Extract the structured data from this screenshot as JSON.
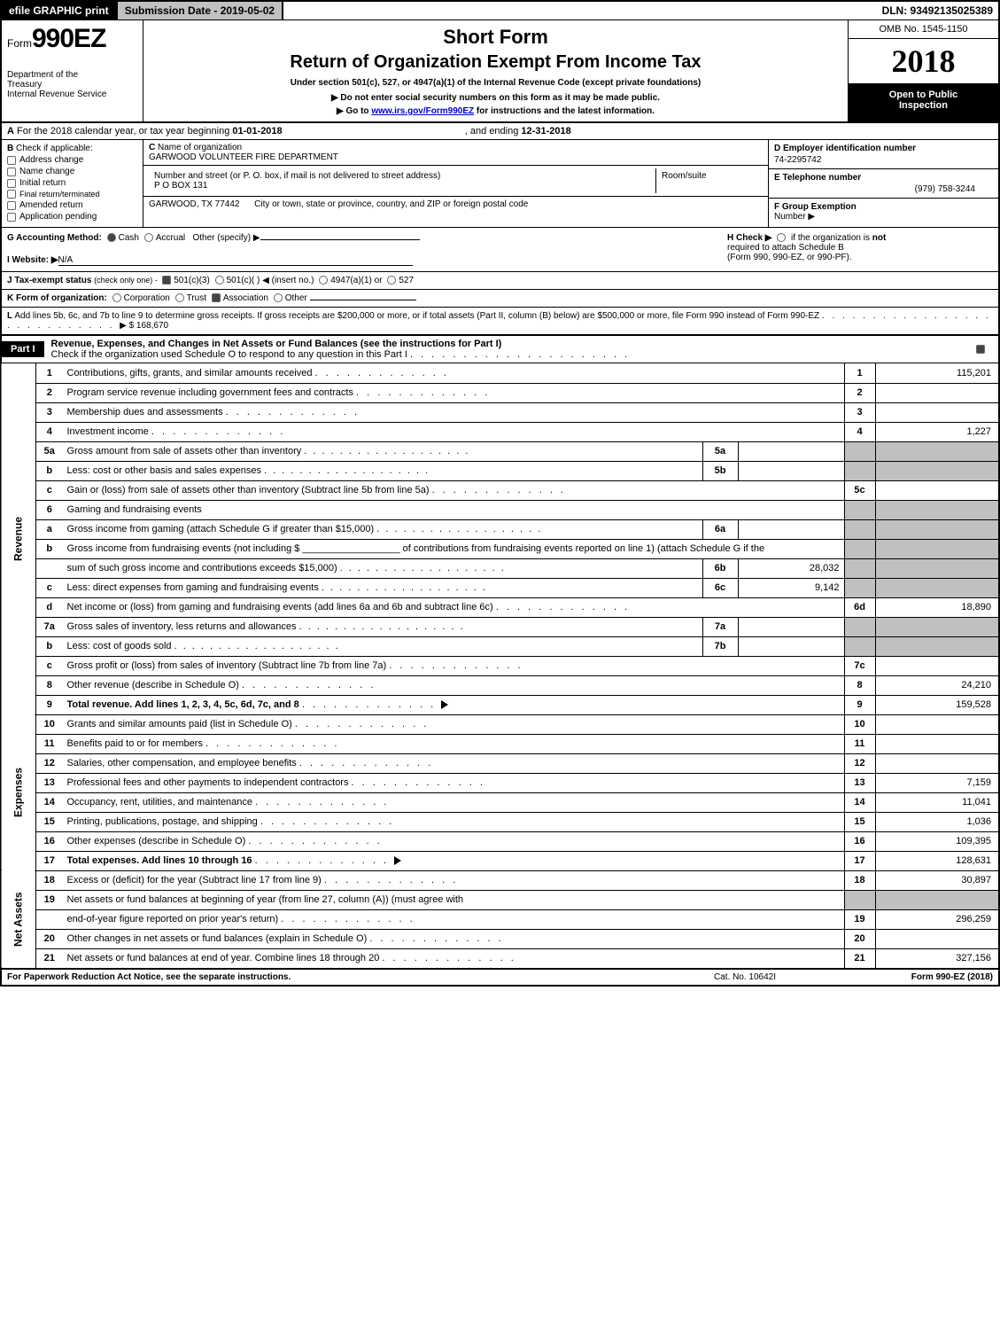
{
  "topbar": {
    "efile_btn": "efile GRAPHIC print",
    "submission": "Submission Date - 2019-05-02",
    "dln": "DLN: 93492135025389"
  },
  "header": {
    "form_prefix": "Form",
    "form_no": "990EZ",
    "dept1": "Department of the",
    "dept2": "Treasury",
    "dept3": "Internal Revenue Service",
    "short_form": "Short Form",
    "title2": "Return of Organization Exempt From Income Tax",
    "under": "Under section 501(c), 527, or 4947(a)(1) of the Internal Revenue Code (except private foundations)",
    "note_arrow1": "▶ Do not enter social security numbers on this form as it may be made public.",
    "note_arrow2_pre": "▶ Go to ",
    "note_arrow2_link": "www.irs.gov/Form990EZ",
    "note_arrow2_post": " for instructions and the latest information.",
    "omb": "OMB No. 1545-1150",
    "year": "2018",
    "open1": "Open to Public",
    "open2": "Inspection"
  },
  "lineA": {
    "pre": "For the 2018 calendar year, or tax year beginning ",
    "begin": "01-01-2018",
    "mid": ", and ending ",
    "end": "12-31-2018",
    "A": "A",
    "B": "B"
  },
  "boxB": {
    "title": "Check if applicable:",
    "items": [
      "Address change",
      "Name change",
      "Initial return",
      "Final return/terminated",
      "Amended return",
      "Application pending"
    ]
  },
  "boxC": {
    "c_label": "C",
    "name_label": "Name of organization",
    "name": "GARWOOD VOLUNTEER FIRE DEPARTMENT",
    "addr_label": "Number and street (or P. O. box, if mail is not delivered to street address)",
    "addr": "P O BOX 131",
    "room_label": "Room/suite",
    "city_label": "City or town, state or province, country, and ZIP or foreign postal code",
    "city": "GARWOOD, TX  77442"
  },
  "boxDEF": {
    "d_label": "D Employer identification number",
    "d_val": "74-2295742",
    "e_label": "E Telephone number",
    "e_val": "(979) 758-3244",
    "f_label": "F Group Exemption",
    "f_label2": "Number ▶"
  },
  "rowG": {
    "g": "G Accounting Method:",
    "cash": "Cash",
    "accr": "Accrual",
    "other": "Other (specify) ▶",
    "h": "H  Check ▶",
    "h_text1": "if the organization is ",
    "h_not": "not",
    "h_text2": "required to attach Schedule B",
    "h_text3": "(Form 990, 990-EZ, or 990-PF).",
    "i": "I Website: ▶",
    "i_val": "N/A"
  },
  "rowJ": {
    "j": "J Tax-exempt status",
    "j_paren": "(check only one) - ",
    "opts": [
      "501(c)(3)",
      "501(c)(  ) ◀ (insert no.)",
      "4947(a)(1) or",
      "527"
    ]
  },
  "rowK": {
    "k": "K Form of organization:",
    "opts": [
      "Corporation",
      "Trust",
      "Association",
      "Other"
    ]
  },
  "rowL": {
    "l": "L",
    "text": "Add lines 5b, 6c, and 7b to line 9 to determine gross receipts. If gross receipts are $200,000 or more, or if total assets (Part II, column (B) below) are $500,000 or more, file Form 990 instead of Form 990-EZ",
    "arrow_val": "▶ $ 168,670"
  },
  "part1": {
    "tag": "Part I",
    "desc": "Revenue, Expenses, and Changes in Net Assets or Fund Balances (see the instructions for Part I)",
    "check_line": "Check if the organization used Schedule O to respond to any question in this Part I"
  },
  "sidelabels": {
    "revenue": "Revenue",
    "expenses": "Expenses",
    "netassets": "Net Assets"
  },
  "lines": [
    {
      "n": "1",
      "desc": "Contributions, gifts, grants, and similar amounts received",
      "box": "1",
      "val": "115,201"
    },
    {
      "n": "2",
      "desc": "Program service revenue including government fees and contracts",
      "box": "2",
      "val": ""
    },
    {
      "n": "3",
      "desc": "Membership dues and assessments",
      "box": "3",
      "val": ""
    },
    {
      "n": "4",
      "desc": "Investment income",
      "box": "4",
      "val": "1,227"
    },
    {
      "n": "5a",
      "desc": "Gross amount from sale of assets other than inventory",
      "sub": "5a",
      "subval": "",
      "shaded": true
    },
    {
      "n": "b",
      "desc": "Less: cost or other basis and sales expenses",
      "sub": "5b",
      "subval": "",
      "shaded": true
    },
    {
      "n": "c",
      "desc": "Gain or (loss) from sale of assets other than inventory (Subtract line 5b from line 5a)",
      "box": "5c",
      "val": ""
    },
    {
      "n": "6",
      "desc": "Gaming and fundraising events",
      "shaded_full": true
    },
    {
      "n": "a",
      "desc": "Gross income from gaming (attach Schedule G if greater than $15,000)",
      "sub": "6a",
      "subval": "",
      "shaded": true
    },
    {
      "n": "b",
      "desc": "Gross income from fundraising events (not including $ __________________ of contributions from fundraising events reported on line 1) (attach Schedule G if the",
      "nobox": true,
      "shaded": true
    },
    {
      "n": "",
      "desc": "sum of such gross income and contributions exceeds $15,000)",
      "sub": "6b",
      "subval": "28,032",
      "shaded": true
    },
    {
      "n": "c",
      "desc": "Less: direct expenses from gaming and fundraising events",
      "sub": "6c",
      "subval": "9,142",
      "shaded": true
    },
    {
      "n": "d",
      "desc": "Net income or (loss) from gaming and fundraising events (add lines 6a and 6b and subtract line 6c)",
      "box": "6d",
      "val": "18,890"
    },
    {
      "n": "7a",
      "desc": "Gross sales of inventory, less returns and allowances",
      "sub": "7a",
      "subval": "",
      "shaded": true
    },
    {
      "n": "b",
      "desc": "Less: cost of goods sold",
      "sub": "7b",
      "subval": "",
      "shaded": true
    },
    {
      "n": "c",
      "desc": "Gross profit or (loss) from sales of inventory (Subtract line 7b from line 7a)",
      "box": "7c",
      "val": ""
    },
    {
      "n": "8",
      "desc": "Other revenue (describe in Schedule O)",
      "box": "8",
      "val": "24,210"
    },
    {
      "n": "9",
      "desc": "Total revenue. Add lines 1, 2, 3, 4, 5c, 6d, 7c, and 8",
      "box": "9",
      "val": "159,528",
      "bold": true,
      "arrow": true
    }
  ],
  "exp_lines": [
    {
      "n": "10",
      "desc": "Grants and similar amounts paid (list in Schedule O)",
      "box": "10",
      "val": ""
    },
    {
      "n": "11",
      "desc": "Benefits paid to or for members",
      "box": "11",
      "val": ""
    },
    {
      "n": "12",
      "desc": "Salaries, other compensation, and employee benefits",
      "box": "12",
      "val": ""
    },
    {
      "n": "13",
      "desc": "Professional fees and other payments to independent contractors",
      "box": "13",
      "val": "7,159"
    },
    {
      "n": "14",
      "desc": "Occupancy, rent, utilities, and maintenance",
      "box": "14",
      "val": "11,041"
    },
    {
      "n": "15",
      "desc": "Printing, publications, postage, and shipping",
      "box": "15",
      "val": "1,036"
    },
    {
      "n": "16",
      "desc": "Other expenses (describe in Schedule O)",
      "box": "16",
      "val": "109,395"
    },
    {
      "n": "17",
      "desc": "Total expenses. Add lines 10 through 16",
      "box": "17",
      "val": "128,631",
      "bold": true,
      "arrow": true
    }
  ],
  "na_lines": [
    {
      "n": "18",
      "desc": "Excess or (deficit) for the year (Subtract line 17 from line 9)",
      "box": "18",
      "val": "30,897"
    },
    {
      "n": "19",
      "desc": "Net assets or fund balances at beginning of year (from line 27, column (A)) (must agree with",
      "nobox": true,
      "shaded": true
    },
    {
      "n": "",
      "desc": "end-of-year figure reported on prior year's return)",
      "box": "19",
      "val": "296,259"
    },
    {
      "n": "20",
      "desc": "Other changes in net assets or fund balances (explain in Schedule O)",
      "box": "20",
      "val": ""
    },
    {
      "n": "21",
      "desc": "Net assets or fund balances at end of year. Combine lines 18 through 20",
      "box": "21",
      "val": "327,156"
    }
  ],
  "footer": {
    "left": "For Paperwork Reduction Act Notice, see the separate instructions.",
    "mid": "Cat. No. 10642I",
    "right": "Form 990-EZ (2018)"
  },
  "colors": {
    "black": "#000000",
    "grey": "#c0c0c0",
    "link": "#0000cc"
  }
}
